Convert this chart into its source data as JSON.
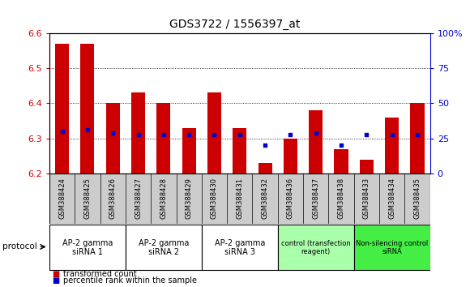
{
  "title": "GDS3722 / 1556397_at",
  "samples": [
    "GSM388424",
    "GSM388425",
    "GSM388426",
    "GSM388427",
    "GSM388428",
    "GSM388429",
    "GSM388430",
    "GSM388431",
    "GSM388432",
    "GSM388436",
    "GSM388437",
    "GSM388438",
    "GSM388433",
    "GSM388434",
    "GSM388435"
  ],
  "transformed_count": [
    6.57,
    6.57,
    6.4,
    6.43,
    6.4,
    6.33,
    6.43,
    6.33,
    6.23,
    6.3,
    6.38,
    6.27,
    6.24,
    6.36,
    6.4
  ],
  "percentile_rank": [
    30,
    31,
    29,
    28,
    28,
    28,
    28,
    28,
    20,
    28,
    29,
    20,
    28,
    28,
    28
  ],
  "ymin": 6.2,
  "ymax": 6.6,
  "y2min": 0,
  "y2max": 100,
  "yticks": [
    6.2,
    6.3,
    6.4,
    6.5,
    6.6
  ],
  "y2ticks": [
    0,
    25,
    50,
    75,
    100
  ],
  "groups": [
    {
      "label": "AP-2 gamma\nsiRNA 1",
      "indices": [
        0,
        1,
        2
      ],
      "color": "#ffffff"
    },
    {
      "label": "AP-2 gamma\nsiRNA 2",
      "indices": [
        3,
        4,
        5
      ],
      "color": "#ffffff"
    },
    {
      "label": "AP-2 gamma\nsiRNA 3",
      "indices": [
        6,
        7,
        8
      ],
      "color": "#ffffff"
    },
    {
      "label": "control (transfection\nreagent)",
      "indices": [
        9,
        10,
        11
      ],
      "color": "#aaffaa"
    },
    {
      "label": "Non-silencing control\nsiRNA",
      "indices": [
        12,
        13,
        14
      ],
      "color": "#44ee44"
    }
  ],
  "bar_color": "#cc0000",
  "dot_color": "#0000cc",
  "bar_bottom": 6.2,
  "legend_red": "transformed count",
  "legend_blue": "percentile rank within the sample",
  "protocol_label": "protocol",
  "sample_box_color": "#cccccc",
  "group_colors": [
    "#ffffff",
    "#ffffff",
    "#ffffff",
    "#aaffaa",
    "#44ee44"
  ]
}
